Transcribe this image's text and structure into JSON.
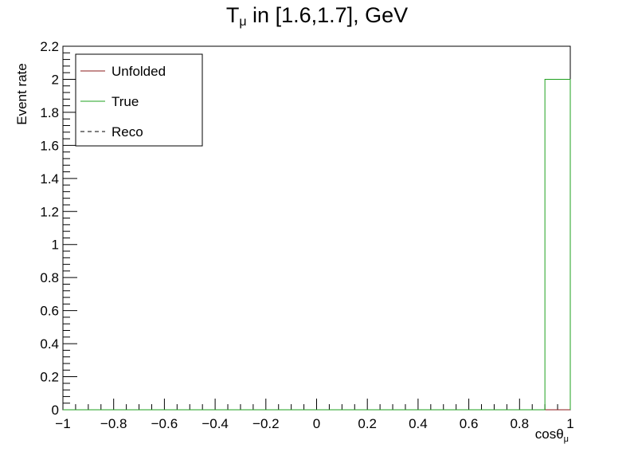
{
  "chart_data": {
    "type": "histogram",
    "title_main": "T",
    "title_sub": "μ",
    "title_rest": " in [1.6,1.7], GeV",
    "xlabel_main": "cosθ",
    "xlabel_sub": "μ",
    "ylabel": "Event rate",
    "xlim": [
      -1,
      1
    ],
    "ylim": [
      0,
      2.2
    ],
    "x_ticks": [
      "−1",
      "−0.8",
      "−0.6",
      "−0.4",
      "−0.2",
      "0",
      "0.2",
      "0.4",
      "0.6",
      "0.8",
      "1"
    ],
    "x_tick_values": [
      -1,
      -0.8,
      -0.6,
      -0.4,
      -0.2,
      0,
      0.2,
      0.4,
      0.6,
      0.8,
      1
    ],
    "y_ticks": [
      "0",
      "0.2",
      "0.4",
      "0.6",
      "0.8",
      "1",
      "1.2",
      "1.4",
      "1.6",
      "1.8",
      "2",
      "2.2"
    ],
    "y_tick_values": [
      0,
      0.2,
      0.4,
      0.6,
      0.8,
      1,
      1.2,
      1.4,
      1.6,
      1.8,
      2,
      2.2
    ],
    "bin_edges": [
      -1,
      -0.9,
      -0.8,
      -0.7,
      -0.6,
      -0.5,
      -0.4,
      -0.3,
      -0.2,
      -0.1,
      0,
      0.1,
      0.2,
      0.3,
      0.4,
      0.5,
      0.6,
      0.7,
      0.8,
      0.9,
      1
    ],
    "legend_position": "top-left",
    "series": [
      {
        "name": "Unfolded",
        "color": "#8b1a1a",
        "style": "solid",
        "values": [
          0,
          0,
          0,
          0,
          0,
          0,
          0,
          0,
          0,
          0,
          0,
          0,
          0,
          0,
          0,
          0,
          0,
          0,
          0,
          0
        ]
      },
      {
        "name": "True",
        "color": "#1fa01f",
        "style": "solid",
        "values": [
          0,
          0,
          0,
          0,
          0,
          0,
          0,
          0,
          0,
          0,
          0,
          0,
          0,
          0,
          0,
          0,
          0,
          0,
          0,
          2
        ]
      },
      {
        "name": "Reco",
        "color": "#000000",
        "style": "dashed",
        "values": [
          0,
          0,
          0,
          0,
          0,
          0,
          0,
          0,
          0,
          0,
          0,
          0,
          0,
          0,
          0,
          0,
          0,
          0,
          0,
          0
        ]
      }
    ]
  }
}
